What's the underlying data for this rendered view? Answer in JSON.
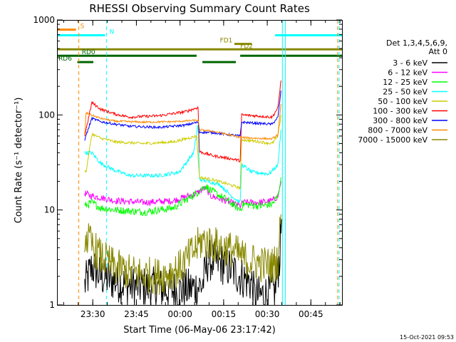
{
  "chart_data": {
    "type": "line",
    "title": "RHESSI Observing Summary Count Rates",
    "xlabel": "Start Time (06-May-06 23:17:42)",
    "ylabel": "Count Rate (s⁻¹ detector⁻¹)",
    "x_unit": "minutes after 23:17:42",
    "xlim": [
      0,
      98
    ],
    "ylim": [
      1,
      1000
    ],
    "yscale": "log",
    "y_ticks": [
      {
        "value": 1,
        "label": "1"
      },
      {
        "value": 10,
        "label": "10"
      },
      {
        "value": 100,
        "label": "100"
      },
      {
        "value": 1000,
        "label": "1000"
      }
    ],
    "x_ticks": [
      {
        "value": 12.3,
        "label": "23:30"
      },
      {
        "value": 27.3,
        "label": "23:45"
      },
      {
        "value": 42.3,
        "label": "00:00"
      },
      {
        "value": 57.3,
        "label": "00:15"
      },
      {
        "value": 72.3,
        "label": "00:30"
      },
      {
        "value": 87.3,
        "label": "00:45"
      }
    ],
    "legend_header": [
      "Det 1,3,4,5,6,9,",
      "Att 0"
    ],
    "series": [
      {
        "name": "3 - 6 keV",
        "color": "#000000",
        "noise": 0.45,
        "points": [
          [
            9.5,
            1.6
          ],
          [
            12,
            2.5
          ],
          [
            15,
            2.0
          ],
          [
            25,
            1.6
          ],
          [
            35,
            1.5
          ],
          [
            42,
            1.4
          ],
          [
            50,
            1.6
          ],
          [
            52,
            3.0
          ],
          [
            58,
            2.6
          ],
          [
            63,
            2.0
          ],
          [
            67,
            1.7
          ],
          [
            68,
            1.2
          ],
          [
            72,
            1.3
          ],
          [
            75,
            1.4
          ],
          [
            76.5,
            3
          ],
          [
            77.2,
            8
          ]
        ]
      },
      {
        "name": "6 - 12 keV",
        "color": "#ff00ff",
        "noise": 0.07,
        "points": [
          [
            9.5,
            15
          ],
          [
            12,
            14
          ],
          [
            15,
            13.5
          ],
          [
            20,
            12.5
          ],
          [
            30,
            12.0
          ],
          [
            40,
            12.5
          ],
          [
            48,
            15
          ],
          [
            51,
            17
          ],
          [
            53,
            14
          ],
          [
            58,
            12.5
          ],
          [
            63,
            11
          ],
          [
            64,
            12
          ],
          [
            70,
            12
          ],
          [
            74,
            12.5
          ],
          [
            76,
            14
          ],
          [
            77,
            20
          ]
        ]
      },
      {
        "name": "12 - 25 keV",
        "color": "#00ff00",
        "noise": 0.08,
        "points": [
          [
            9.5,
            11
          ],
          [
            12,
            12
          ],
          [
            15,
            10.5
          ],
          [
            20,
            10
          ],
          [
            30,
            9.5
          ],
          [
            40,
            10.5
          ],
          [
            48,
            15
          ],
          [
            51,
            18
          ],
          [
            53,
            16
          ],
          [
            58,
            13
          ],
          [
            63,
            10
          ],
          [
            64,
            11.5
          ],
          [
            70,
            11
          ],
          [
            74,
            11.5
          ],
          [
            76,
            14
          ],
          [
            77,
            22
          ]
        ]
      },
      {
        "name": "25 - 50 keV",
        "color": "#00ffff",
        "noise": 0.04,
        "points": [
          [
            9.5,
            40
          ],
          [
            12,
            40
          ],
          [
            15,
            31
          ],
          [
            20,
            26
          ],
          [
            25,
            23
          ],
          [
            35,
            23
          ],
          [
            42,
            25
          ],
          [
            47,
            40
          ],
          [
            48.5,
            80
          ],
          [
            49,
            21
          ],
          [
            52,
            20
          ],
          [
            56,
            18.5
          ],
          [
            60,
            14
          ],
          [
            63,
            12
          ],
          [
            63.5,
            30
          ],
          [
            67,
            25
          ],
          [
            73,
            24
          ],
          [
            76,
            30
          ],
          [
            77,
            70
          ]
        ]
      },
      {
        "name": "50 - 100 keV",
        "color": "#cccc00",
        "noise": 0.03,
        "points": [
          [
            9.5,
            26
          ],
          [
            10,
            25
          ],
          [
            12,
            63
          ],
          [
            15,
            57
          ],
          [
            20,
            52
          ],
          [
            30,
            50
          ],
          [
            40,
            52
          ],
          [
            48,
            60
          ],
          [
            49,
            22
          ],
          [
            53,
            21
          ],
          [
            58,
            19
          ],
          [
            63,
            17
          ],
          [
            63.5,
            55
          ],
          [
            68,
            53
          ],
          [
            74,
            50
          ],
          [
            76,
            60
          ],
          [
            77,
            100
          ]
        ]
      },
      {
        "name": "100 - 300 keV",
        "color": "#ff0000",
        "noise": 0.03,
        "points": [
          [
            9.5,
            60
          ],
          [
            12,
            135
          ],
          [
            15,
            115
          ],
          [
            20,
            102
          ],
          [
            25,
            95
          ],
          [
            35,
            98
          ],
          [
            44,
            108
          ],
          [
            48.5,
            120
          ],
          [
            49,
            41
          ],
          [
            54,
            37
          ],
          [
            59,
            35
          ],
          [
            63,
            33
          ],
          [
            63.5,
            100
          ],
          [
            68,
            98
          ],
          [
            74,
            95
          ],
          [
            76,
            120
          ],
          [
            77,
            230
          ]
        ]
      },
      {
        "name": "300 - 800 keV",
        "color": "#0000ff",
        "noise": 0.025,
        "points": [
          [
            9.5,
            55
          ],
          [
            12,
            92
          ],
          [
            15,
            85
          ],
          [
            20,
            80
          ],
          [
            25,
            76
          ],
          [
            35,
            74
          ],
          [
            44,
            78
          ],
          [
            48.5,
            84
          ],
          [
            49,
            66
          ],
          [
            54,
            65
          ],
          [
            59,
            62
          ],
          [
            63,
            60
          ],
          [
            63.5,
            84
          ],
          [
            68,
            82
          ],
          [
            74,
            80
          ],
          [
            76,
            95
          ],
          [
            77,
            180
          ]
        ]
      },
      {
        "name": "800 - 7000 keV",
        "color": "#ff8800",
        "noise": 0.02,
        "points": [
          [
            9.5,
            60
          ],
          [
            10,
            105
          ],
          [
            15,
            92
          ],
          [
            20,
            86
          ],
          [
            30,
            84
          ],
          [
            40,
            85
          ],
          [
            48.5,
            88
          ],
          [
            49,
            70
          ],
          [
            54,
            67
          ],
          [
            59,
            62
          ],
          [
            63,
            58
          ],
          [
            68,
            57
          ],
          [
            74,
            56
          ],
          [
            76,
            62
          ],
          [
            77,
            130
          ]
        ]
      },
      {
        "name": "7000 - 15000 keV",
        "color": "#888800",
        "noise": 0.4,
        "points": [
          [
            9.5,
            5.5
          ],
          [
            12,
            4.2
          ],
          [
            15,
            3.2
          ],
          [
            20,
            2.5
          ],
          [
            25,
            2.2
          ],
          [
            35,
            2.0
          ],
          [
            42,
            2.4
          ],
          [
            50,
            4.8
          ],
          [
            55,
            4.2
          ],
          [
            60,
            3.8
          ],
          [
            65,
            3.0
          ],
          [
            70,
            2.7
          ],
          [
            74,
            2.6
          ],
          [
            76,
            3
          ],
          [
            77,
            9
          ]
        ]
      }
    ],
    "states": [
      {
        "label": "S",
        "color": "#ff8800",
        "level": 790,
        "spans": [
          [
            0,
            6.5
          ]
        ],
        "label_at": 8
      },
      {
        "label": "N",
        "color": "#00ffff",
        "level": 690,
        "spans": [
          [
            0,
            16.5
          ],
          [
            75,
            98
          ]
        ],
        "label_at": 18
      },
      {
        "label": "FD1",
        "color": "#888800",
        "level": 560,
        "spans": [
          [
            61,
            67
          ]
        ],
        "label_at": 56
      },
      {
        "label": "FD2",
        "color": "#888800",
        "level": 490,
        "spans": [
          [
            0,
            98
          ]
        ],
        "label_at": 63
      },
      {
        "label": "RD0",
        "color": "#006600",
        "level": 420,
        "spans": [
          [
            0,
            48
          ],
          [
            63,
            98
          ]
        ],
        "label_at": 8.5
      },
      {
        "label": "RD6",
        "color": "#006600",
        "level": 360,
        "spans": [
          [
            7,
            12.5
          ],
          [
            50,
            61.5
          ]
        ],
        "label_at": 0.5
      }
    ],
    "vertical_lines": [
      {
        "x": 7.5,
        "color": "#ff8800",
        "style": "dashed"
      },
      {
        "x": 17.0,
        "color": "#00ffff",
        "style": "dashed"
      },
      {
        "x": 77.5,
        "color": "#00ffff",
        "style": "solid"
      },
      {
        "x": 78.5,
        "color": "#00ffff",
        "style": "solid"
      },
      {
        "x": 96.5,
        "color": "#ff8800",
        "style": "dashed"
      },
      {
        "x": 97.0,
        "color": "#00ffff",
        "style": "dashed"
      }
    ],
    "footer": "15-Oct-2021 09:53"
  }
}
